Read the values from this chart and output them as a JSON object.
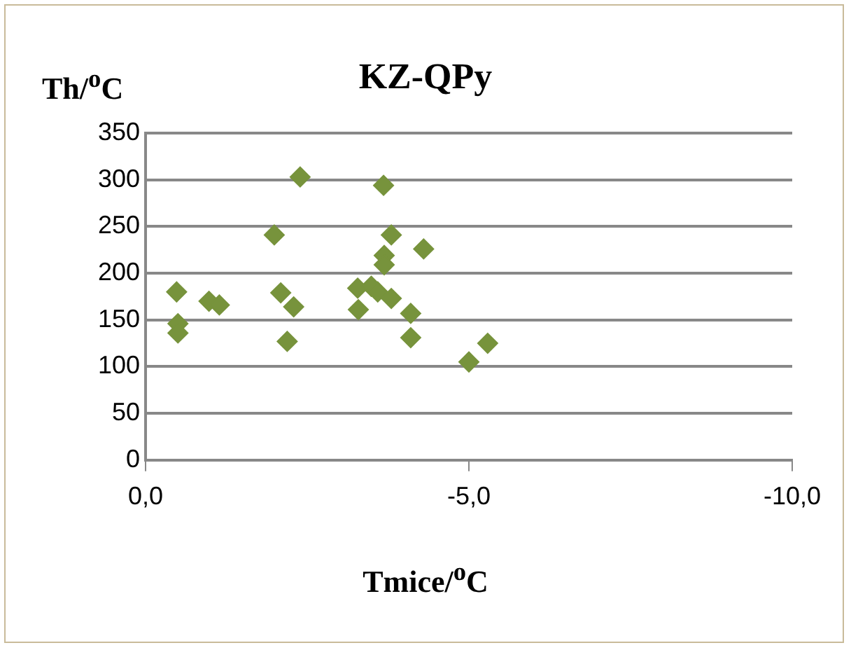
{
  "chart_data": {
    "type": "scatter",
    "title": "KZ-QPy",
    "xlabel": "Tmice/$^{o}$C",
    "ylabel": "Th/$^{o}$C",
    "series": [
      {
        "color": "#77933c",
        "x": [
          -0.48,
          -0.5,
          -0.5,
          -0.98,
          -1.14,
          -1.99,
          -2.09,
          -2.29,
          -2.19,
          -2.39,
          -3.28,
          -3.29,
          -3.49,
          -3.59,
          -3.8,
          -3.68,
          -3.8,
          -3.69,
          -3.69,
          -4.1,
          -4.1,
          -4.3,
          -5.0,
          -5.29
        ],
        "values": [
          180,
          146,
          136,
          170,
          166,
          241,
          179,
          164,
          127,
          303,
          184,
          161,
          186,
          180,
          173,
          294,
          241,
          219,
          209,
          157,
          131,
          226,
          105,
          125
        ]
      }
    ],
    "xlim": [
      0,
      -10
    ],
    "xticks": [
      {
        "value": 0,
        "label": "0,0"
      },
      {
        "value": -5,
        "label": "-5,0"
      },
      {
        "value": -10,
        "label": "-10,0"
      }
    ],
    "ylim": [
      0,
      350
    ],
    "yticks": [
      0,
      50,
      100,
      150,
      200,
      250,
      300,
      350
    ],
    "grid": "y",
    "legend": false,
    "marker": "diamond"
  }
}
